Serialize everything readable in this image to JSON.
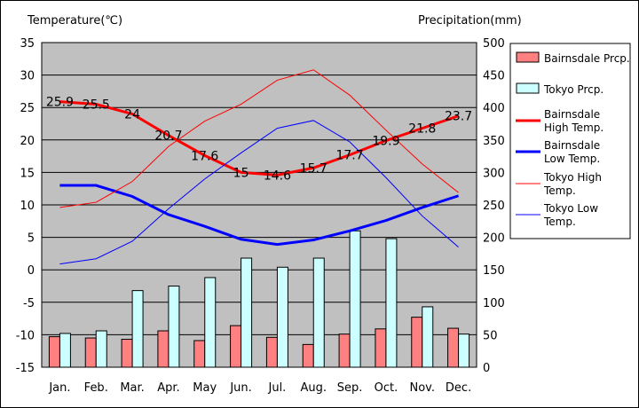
{
  "chart_data": {
    "type": "bar+line",
    "left_axis_title": "Temperature(℃)",
    "right_axis_title": "Precipitation(mm)",
    "categories": [
      "Jan.",
      "Feb.",
      "Mar.",
      "Apr.",
      "May",
      "Jun.",
      "Jul.",
      "Aug.",
      "Sep.",
      "Oct.",
      "Nov.",
      "Dec."
    ],
    "left_ylim": [
      -15,
      35
    ],
    "left_ticks": [
      35,
      30,
      25,
      20,
      15,
      10,
      5,
      0,
      -5,
      -10,
      -15
    ],
    "right_ylim": [
      0,
      500
    ],
    "right_ticks": [
      500,
      450,
      400,
      350,
      300,
      250,
      200,
      150,
      100,
      50,
      0
    ],
    "grid": true,
    "legend_position": "right",
    "bars": [
      {
        "name": "Bairnsdale Prcp.",
        "color": "#ff8080",
        "values": [
          47,
          45,
          43,
          56,
          41,
          64,
          46,
          35,
          51,
          59,
          77,
          60
        ]
      },
      {
        "name": "Tokyo Prcp.",
        "color": "#ccffff",
        "values": [
          52,
          56,
          118,
          125,
          138,
          168,
          154,
          168,
          210,
          198,
          93,
          51
        ]
      }
    ],
    "lines": [
      {
        "name": "Bairnsdale\nHigh Temp.",
        "color": "#ff0000",
        "width": 3,
        "values": [
          25.9,
          25.5,
          24,
          20.7,
          17.6,
          15,
          14.6,
          15.7,
          17.7,
          19.9,
          21.8,
          23.7
        ],
        "labels": [
          "25.9",
          "25.5",
          "24",
          "20.7",
          "17.6",
          "15",
          "14.6",
          "15.7",
          "17.7",
          "19.9",
          "21.8",
          "23.7"
        ]
      },
      {
        "name": "Bairnsdale\nLow Temp.",
        "color": "#0000ff",
        "width": 3,
        "values": [
          13,
          13,
          11.3,
          8.5,
          6.7,
          4.7,
          3.9,
          4.6,
          6,
          7.6,
          9.6,
          11.4
        ]
      },
      {
        "name": "Tokyo High\nTemp.",
        "color": "#ff0000",
        "width": 1,
        "values": [
          9.6,
          10.4,
          13.6,
          19,
          22.9,
          25.5,
          29.2,
          30.8,
          26.9,
          21.5,
          16.3,
          11.9
        ]
      },
      {
        "name": "Tokyo Low\nTemp.",
        "color": "#0000ff",
        "width": 1,
        "values": [
          0.9,
          1.7,
          4.4,
          9.4,
          14,
          18,
          21.8,
          23,
          19.7,
          14.2,
          8.3,
          3.5
        ]
      }
    ]
  }
}
